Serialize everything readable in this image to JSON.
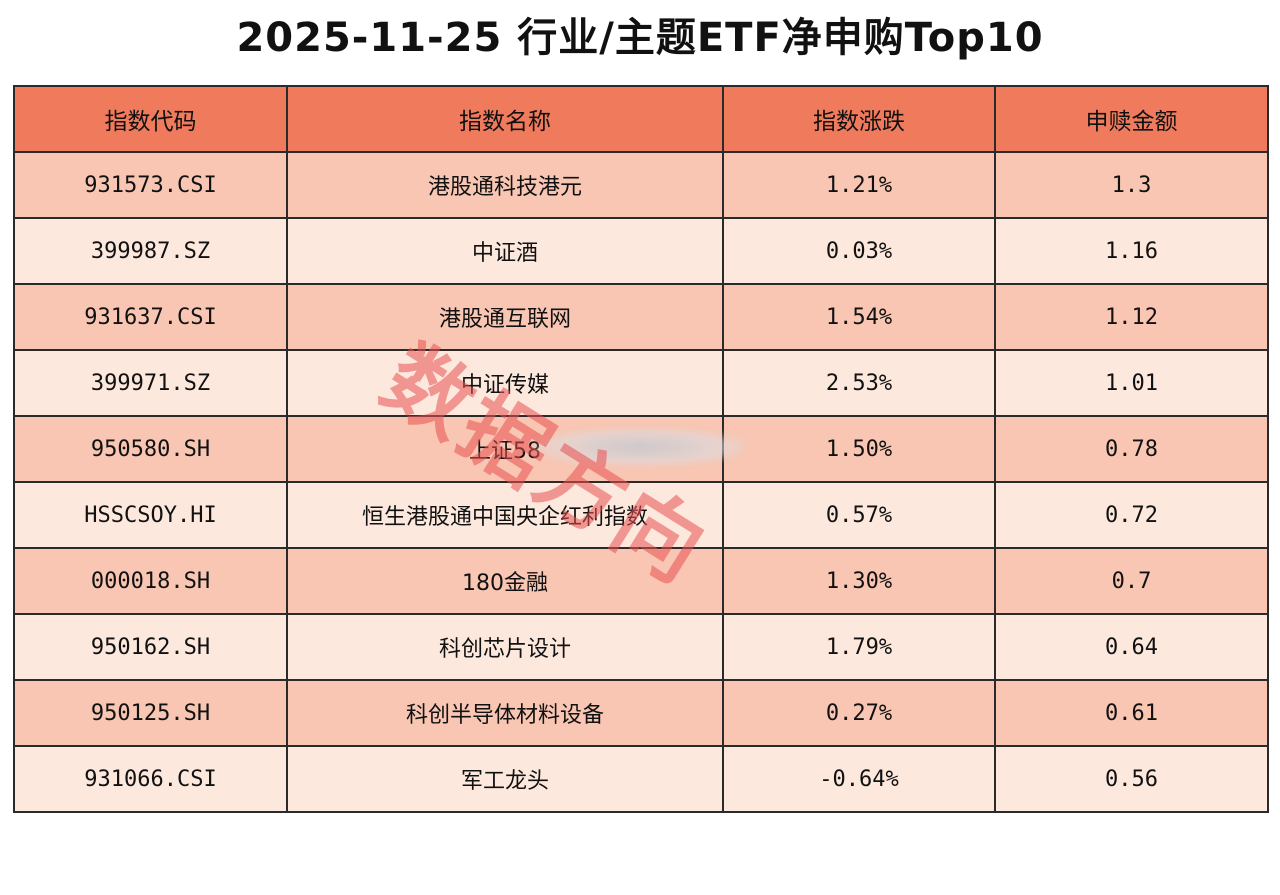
{
  "chart_data": {
    "type": "table",
    "title": "2025-11-25 行业/主题ETF净申购Top10",
    "columns": [
      "指数代码",
      "指数名称",
      "指数涨跌",
      "申赎金额"
    ],
    "rows": [
      [
        "931573.CSI",
        "港股通科技港元",
        "1.21%",
        "1.3"
      ],
      [
        "399987.SZ",
        "中证酒",
        "0.03%",
        "1.16"
      ],
      [
        "931637.CSI",
        "港股通互联网",
        "1.54%",
        "1.12"
      ],
      [
        "399971.SZ",
        "中证传媒",
        "2.53%",
        "1.01"
      ],
      [
        "950580.SH",
        "上证58",
        "1.50%",
        "0.78"
      ],
      [
        "HSSCSOY.HI",
        "恒生港股通中国央企红利指数",
        "0.57%",
        "0.72"
      ],
      [
        "000018.SH",
        "180金融",
        "1.30%",
        "0.7"
      ],
      [
        "950162.SH",
        "科创芯片设计",
        "1.79%",
        "0.64"
      ],
      [
        "950125.SH",
        "科创半导体材料设备",
        "0.27%",
        "0.61"
      ],
      [
        "931066.CSI",
        "军工龙头",
        "-0.64%",
        "0.56"
      ]
    ]
  },
  "watermark": "数据方向",
  "colors": {
    "header_bg": "#f07a5c",
    "row_odd": "#f8c6b2",
    "row_even": "#fde8de"
  }
}
